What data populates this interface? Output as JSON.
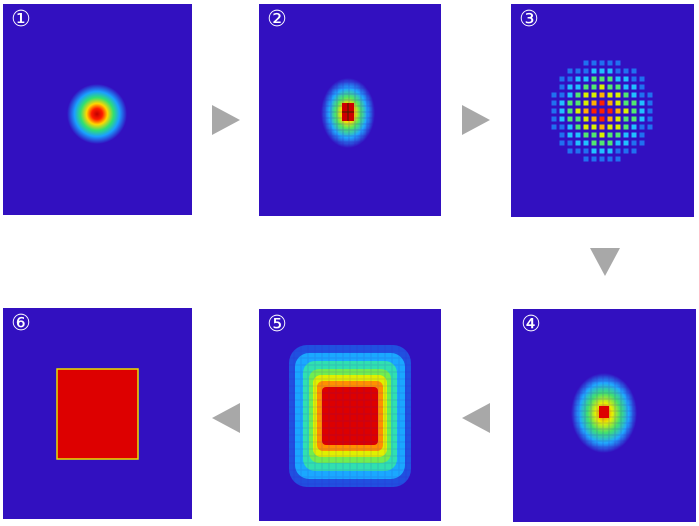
{
  "panels": [
    {
      "step": 1,
      "label": "①",
      "pattern": "gaussian-spot"
    },
    {
      "step": 2,
      "label": "②",
      "pattern": "pixelated-gaussian"
    },
    {
      "step": 3,
      "label": "③",
      "pattern": "dotted-grid"
    },
    {
      "step": 4,
      "label": "④",
      "pattern": "small-pixelated-spot"
    },
    {
      "step": 5,
      "label": "⑤",
      "pattern": "large-square-blur"
    },
    {
      "step": 6,
      "label": "⑥",
      "pattern": "flat-red-square"
    }
  ],
  "colors": {
    "background": "#3210C0",
    "arrow": "#A8A8A8",
    "label": "#FFFFFF",
    "spot_red": "#DD0000",
    "square_border": "#E8E000"
  },
  "arrows": [
    "right-arrow",
    "right-arrow",
    "down-arrow",
    "left-arrow",
    "left-arrow"
  ]
}
